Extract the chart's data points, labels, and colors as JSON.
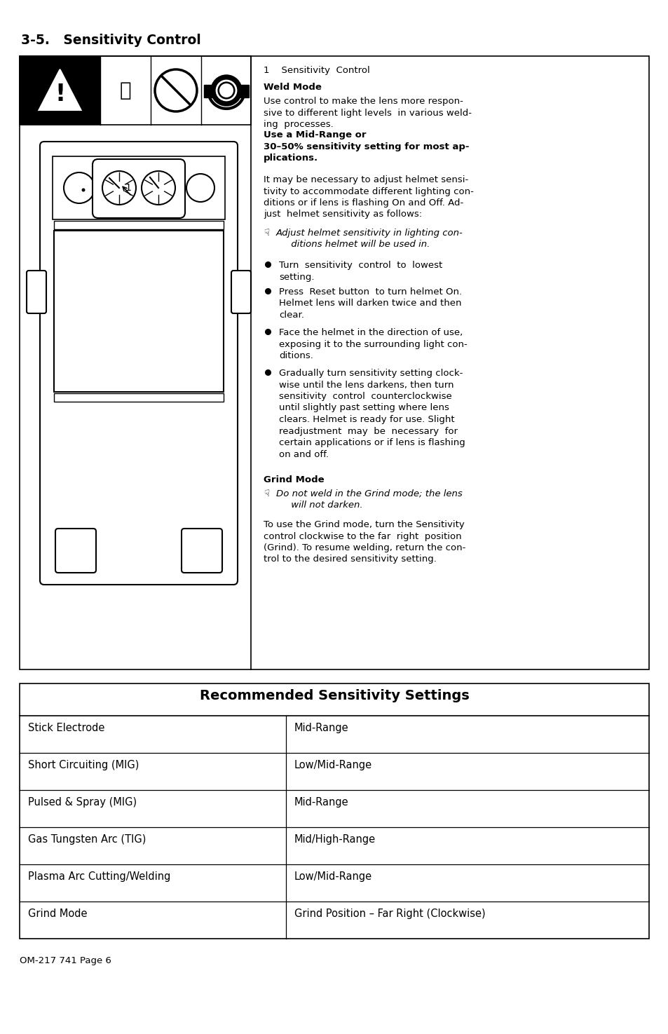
{
  "title": "3-5.   Sensitivity Control",
  "section_header": "1    Sensitivity  Control",
  "weld_mode_header": "Weld Mode",
  "weld_mode_text1": "Use control to make the lens more respon-\nsive to different light levels  in various weld-\ning  processes.  ",
  "weld_mode_bold": "Use a Mid-Range or\n30–50% sensitivity setting for most ap-\nplications.",
  "paragraph2": "It may be necessary to adjust helmet sensi-\ntivity to accommodate different lighting con-\nditions or if lens is flashing On and Off. Ad-\njust  helmet sensitivity as follows:",
  "italic_note": "Adjust helmet sensitivity in lighting con-\n     ditions helmet will be used in.",
  "bullets": [
    "Turn  sensitivity  control  to  lowest\nsetting.",
    "Press  Reset button  to turn helmet On.\nHelmet lens will darken twice and then\nclear.",
    "Face the helmet in the direction of use,\nexposing it to the surrounding light con-\nditions.",
    "Gradually turn sensitivity setting clock-\nwise until the lens darkens, then turn\nsensitivity  control  counterclockwise\nuntil slightly past setting where lens\nclears. Helmet is ready for use. Slight\nreadjustment may be necessary for\ncertain applications or if lens is flashing\non and off."
  ],
  "grind_mode_header": "Grind Mode",
  "grind_italic_note": "Do not weld in the Grind mode; the lens\n     will not darken.",
  "grind_text": "To use the Grind mode, turn the Sensitivity\ncontrol clockwise to the far right  position\n(Grind). To resume welding, return the con-\ntrol to the desired sensitivity setting.",
  "table_title": "Recommended Sensitivity Settings",
  "table_rows": [
    [
      "Stick Electrode",
      "Mid-Range"
    ],
    [
      "Short Circuiting (MIG)",
      "Low/Mid-Range"
    ],
    [
      "Pulsed & Spray (MIG)",
      "Mid-Range"
    ],
    [
      "Gas Tungsten Arc (TIG)",
      "Mid/High-Range"
    ],
    [
      "Plasma Arc Cutting/Welding",
      "Low/Mid-Range"
    ],
    [
      "Grind Mode",
      "Grind Position – Far Right (Clockwise)"
    ]
  ],
  "footer": "OM-217 741 Page 6",
  "bg_color": "#ffffff",
  "text_color": "#000000"
}
